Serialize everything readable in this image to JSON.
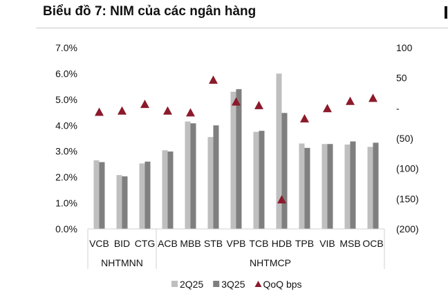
{
  "title": "Biểu đồ 7: NIM của các ngân hàng",
  "chart_data": {
    "type": "bar",
    "title": "Biểu đồ 7: NIM của các ngân hàng",
    "categories": [
      "VCB",
      "BID",
      "CTG",
      "ACB",
      "MBB",
      "STB",
      "VPB",
      "TCB",
      "HDB",
      "TPB",
      "VIB",
      "MSB",
      "OCB"
    ],
    "groups": [
      {
        "label": "NHTMNN",
        "categories": [
          "VCB",
          "BID",
          "CTG"
        ]
      },
      {
        "label": "NHTMCP",
        "categories": [
          "ACB",
          "MBB",
          "STB",
          "VPB",
          "TCB",
          "HDB",
          "TPB",
          "VIB",
          "MSB",
          "OCB"
        ]
      }
    ],
    "series": [
      {
        "name": "2Q25",
        "type": "bar",
        "axis": "left",
        "color": "#bfbfbf",
        "values": [
          2.65,
          2.08,
          2.53,
          3.04,
          4.15,
          3.55,
          5.3,
          3.75,
          6.0,
          3.3,
          3.28,
          3.26,
          3.17
        ]
      },
      {
        "name": "3Q25",
        "type": "bar",
        "axis": "left",
        "color": "#7f7f7f",
        "values": [
          2.58,
          2.03,
          2.6,
          2.99,
          4.08,
          4.0,
          5.4,
          3.79,
          4.48,
          3.13,
          3.28,
          3.38,
          3.33
        ]
      },
      {
        "name": "QoQ bps",
        "type": "scatter",
        "marker": "triangle",
        "axis": "right",
        "color": "#8b1a2b",
        "values": [
          -7,
          -5,
          6,
          -5,
          -8,
          46,
          10,
          4,
          -152,
          -18,
          -1,
          11,
          16
        ]
      }
    ],
    "y_left": {
      "range": [
        0,
        7
      ],
      "ticks": [
        "0.0%",
        "1.0%",
        "2.0%",
        "3.0%",
        "4.0%",
        "5.0%",
        "6.0%",
        "7.0%"
      ]
    },
    "y_right": {
      "range": [
        -200,
        100
      ],
      "ticks": [
        "(200)",
        "(150)",
        "(100)",
        "(50)",
        "-",
        "50",
        "100"
      ]
    },
    "grid": false,
    "legend": "bottom"
  }
}
